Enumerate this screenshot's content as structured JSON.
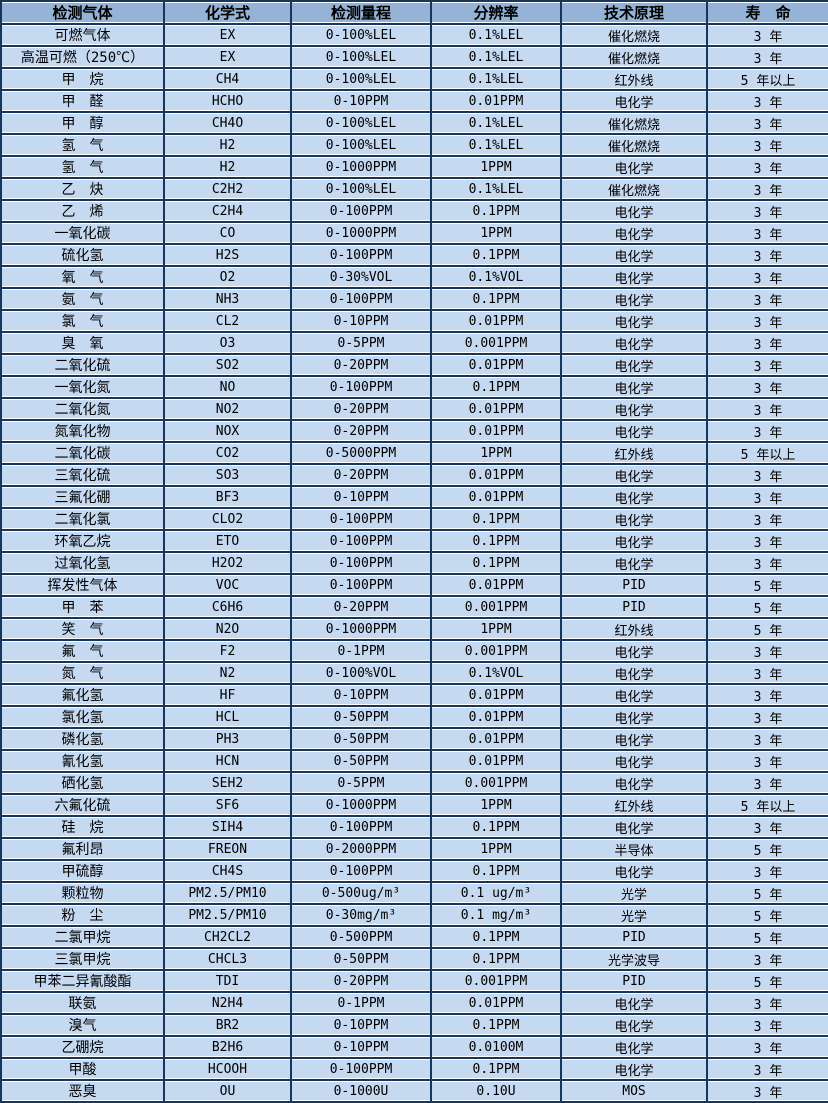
{
  "colors": {
    "header_bg": "#95B3D7",
    "row_bg": "#C5D9F1",
    "border": "#16365C",
    "hairline": "#FFFFFF",
    "text": "#000000"
  },
  "table": {
    "headers": [
      "检测气体",
      "化学式",
      "检测量程",
      "分辨率",
      "技术原理",
      "寿　命"
    ],
    "rows": [
      [
        "可燃气体",
        "EX",
        "0-100%LEL",
        "0.1%LEL",
        "催化燃烧",
        "3 年"
      ],
      [
        "高温可燃（250℃）",
        "EX",
        "0-100%LEL",
        "0.1%LEL",
        "催化燃烧",
        "3 年"
      ],
      [
        "甲　烷",
        "CH4",
        "0-100%LEL",
        "0.1%LEL",
        "红外线",
        "5 年以上"
      ],
      [
        "甲　醛",
        "HCHO",
        "0-10PPM",
        "0.01PPM",
        "电化学",
        "3 年"
      ],
      [
        "甲　醇",
        "CH4O",
        "0-100%LEL",
        "0.1%LEL",
        "催化燃烧",
        "3 年"
      ],
      [
        "氢　气",
        "H2",
        "0-100%LEL",
        "0.1%LEL",
        "催化燃烧",
        "3 年"
      ],
      [
        "氢　气",
        "H2",
        "0-1000PPM",
        "1PPM",
        "电化学",
        "3 年"
      ],
      [
        "乙　炔",
        "C2H2",
        "0-100%LEL",
        "0.1%LEL",
        "催化燃烧",
        "3 年"
      ],
      [
        "乙　烯",
        "C2H4",
        "0-100PPM",
        "0.1PPM",
        "电化学",
        "3 年"
      ],
      [
        "一氧化碳",
        "CO",
        "0-1000PPM",
        "1PPM",
        "电化学",
        "3 年"
      ],
      [
        "硫化氢",
        "H2S",
        "0-100PPM",
        "0.1PPM",
        "电化学",
        "3 年"
      ],
      [
        "氧　气",
        "O2",
        "0-30%VOL",
        "0.1%VOL",
        "电化学",
        "3 年"
      ],
      [
        "氨　气",
        "NH3",
        "0-100PPM",
        "0.1PPM",
        "电化学",
        "3 年"
      ],
      [
        "氯　气",
        "CL2",
        "0-10PPM",
        "0.01PPM",
        "电化学",
        "3 年"
      ],
      [
        "臭　氧",
        "O3",
        "0-5PPM",
        "0.001PPM",
        "电化学",
        "3 年"
      ],
      [
        "二氧化硫",
        "SO2",
        "0-20PPM",
        "0.01PPM",
        "电化学",
        "3 年"
      ],
      [
        "一氧化氮",
        "NO",
        "0-100PPM",
        "0.1PPM",
        "电化学",
        "3 年"
      ],
      [
        "二氧化氮",
        "NO2",
        "0-20PPM",
        "0.01PPM",
        "电化学",
        "3 年"
      ],
      [
        "氮氧化物",
        "NOX",
        "0-20PPM",
        "0.01PPM",
        "电化学",
        "3 年"
      ],
      [
        "二氧化碳",
        "CO2",
        "0-5000PPM",
        "1PPM",
        "红外线",
        "5 年以上"
      ],
      [
        "三氧化硫",
        "SO3",
        "0-20PPM",
        "0.01PPM",
        "电化学",
        "3 年"
      ],
      [
        "三氟化硼",
        "BF3",
        "0-10PPM",
        "0.01PPM",
        "电化学",
        "3 年"
      ],
      [
        "二氧化氯",
        "CLO2",
        "0-100PPM",
        "0.1PPM",
        "电化学",
        "3 年"
      ],
      [
        "环氧乙烷",
        "ETO",
        "0-100PPM",
        "0.1PPM",
        "电化学",
        "3 年"
      ],
      [
        "过氧化氢",
        "H2O2",
        "0-100PPM",
        "0.1PPM",
        "电化学",
        "3 年"
      ],
      [
        "挥发性气体",
        "VOC",
        "0-100PPM",
        "0.01PPM",
        "PID",
        "5 年"
      ],
      [
        "甲　苯",
        "C6H6",
        "0-20PPM",
        "0.001PPM",
        "PID",
        "5 年"
      ],
      [
        "笑　气",
        "N2O",
        "0-1000PPM",
        "1PPM",
        "红外线",
        "5 年"
      ],
      [
        "氟　气",
        "F2",
        "0-1PPM",
        "0.001PPM",
        "电化学",
        "3 年"
      ],
      [
        "氮　气",
        "N2",
        "0-100%VOL",
        "0.1%VOL",
        "电化学",
        "3 年"
      ],
      [
        "氟化氢",
        "HF",
        "0-10PPM",
        "0.01PPM",
        "电化学",
        "3 年"
      ],
      [
        "氯化氢",
        "HCL",
        "0-50PPM",
        "0.01PPM",
        "电化学",
        "3 年"
      ],
      [
        "磷化氢",
        "PH3",
        "0-50PPM",
        "0.01PPM",
        "电化学",
        "3 年"
      ],
      [
        "氰化氢",
        "HCN",
        "0-50PPM",
        "0.01PPM",
        "电化学",
        "3 年"
      ],
      [
        "硒化氢",
        "SEH2",
        "0-5PPM",
        "0.001PPM",
        "电化学",
        "3 年"
      ],
      [
        "六氟化硫",
        "SF6",
        "0-1000PPM",
        "1PPM",
        "红外线",
        "5 年以上"
      ],
      [
        "硅　烷",
        "SIH4",
        "0-100PPM",
        "0.1PPM",
        "电化学",
        "3 年"
      ],
      [
        "氟利昂",
        "FREON",
        "0-2000PPM",
        "1PPM",
        "半导体",
        "5 年"
      ],
      [
        "甲硫醇",
        "CH4S",
        "0-100PPM",
        "0.1PPM",
        "电化学",
        "3 年"
      ],
      [
        "颗粒物",
        "PM2.5/PM10",
        "0-500ug/m³",
        "0.1 ug/m³",
        "光学",
        "5 年"
      ],
      [
        "粉　尘",
        "PM2.5/PM10",
        "0-30mg/m³",
        "0.1 mg/m³",
        "光学",
        "5 年"
      ],
      [
        "二氯甲烷",
        "CH2CL2",
        "0-500PPM",
        "0.1PPM",
        "PID",
        "5 年"
      ],
      [
        "三氯甲烷",
        "CHCL3",
        "0-50PPM",
        "0.1PPM",
        "光学波导",
        "3 年"
      ],
      [
        "甲苯二异氰酸酯",
        "TDI",
        "0-20PPM",
        "0.001PPM",
        "PID",
        "5 年"
      ],
      [
        "联氨",
        "N2H4",
        "0-1PPM",
        "0.01PPM",
        "电化学",
        "3 年"
      ],
      [
        "溴气",
        "BR2",
        "0-10PPM",
        "0.1PPM",
        "电化学",
        "3 年"
      ],
      [
        "乙硼烷",
        "B2H6",
        "0-10PPM",
        "0.0100M",
        "电化学",
        "3 年"
      ],
      [
        "甲酸",
        "HCOOH",
        "0-100PPM",
        "0.1PPM",
        "电化学",
        "3 年"
      ],
      [
        "恶臭",
        "OU",
        "0-1000U",
        "0.10U",
        "MOS",
        "3 年"
      ]
    ]
  }
}
